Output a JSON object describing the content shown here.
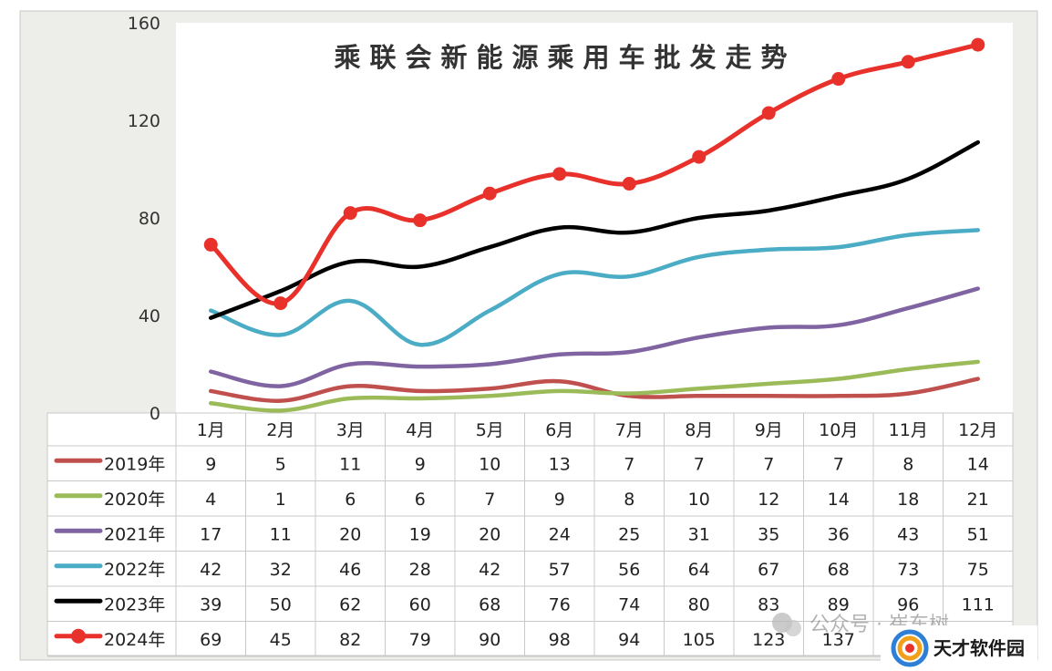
{
  "chart_data": {
    "type": "line",
    "title": "乘联会新能源乘用车批发走势",
    "categories": [
      "1月",
      "2月",
      "3月",
      "4月",
      "5月",
      "6月",
      "7月",
      "8月",
      "9月",
      "10月",
      "11月",
      "12月"
    ],
    "ylim": [
      0,
      160
    ],
    "yticks": [
      "0",
      "40",
      "80",
      "120",
      "160"
    ],
    "grid": false,
    "legend": "data-table-left",
    "series": [
      {
        "name": "2019年",
        "color": "#c0504d",
        "marker": false,
        "values": [
          9,
          5,
          11,
          9,
          10,
          13,
          7,
          7,
          7,
          7,
          8,
          14
        ]
      },
      {
        "name": "2020年",
        "color": "#9bbb59",
        "marker": false,
        "values": [
          4,
          1,
          6,
          6,
          7,
          9,
          8,
          10,
          12,
          14,
          18,
          21
        ]
      },
      {
        "name": "2021年",
        "color": "#8064a2",
        "marker": false,
        "values": [
          17,
          11,
          20,
          19,
          20,
          24,
          25,
          31,
          35,
          36,
          43,
          51
        ]
      },
      {
        "name": "2022年",
        "color": "#4bacc6",
        "marker": false,
        "values": [
          42,
          32,
          46,
          28,
          42,
          57,
          56,
          64,
          67,
          68,
          73,
          75
        ]
      },
      {
        "name": "2023年",
        "color": "#000000",
        "marker": false,
        "values": [
          39,
          50,
          62,
          60,
          68,
          76,
          74,
          80,
          83,
          89,
          96,
          111
        ]
      },
      {
        "name": "2024年",
        "color": "#e8312a",
        "marker": true,
        "values": [
          69,
          45,
          82,
          79,
          90,
          98,
          94,
          105,
          123,
          137,
          144,
          151
        ]
      }
    ],
    "table_values": {
      "2024年": [
        "69",
        "45",
        "82",
        "79",
        "90",
        "98",
        "94",
        "105",
        "123",
        "137",
        "",
        ""
      ]
    }
  },
  "watermark": {
    "text": "公众号 · 崔东树"
  },
  "logo": {
    "text": "天才软件园",
    "icon": "swirl-logo-icon"
  }
}
